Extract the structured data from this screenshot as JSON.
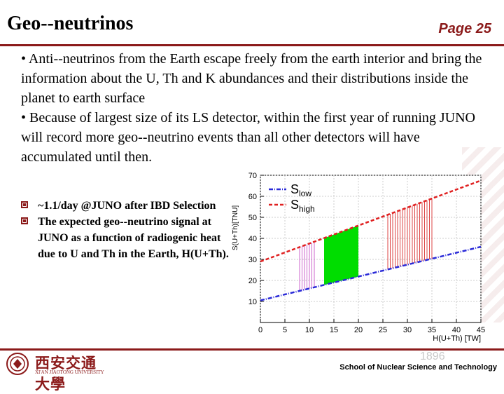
{
  "header": {
    "title": "Geo--neutrinos",
    "page": "Page 25"
  },
  "body": {
    "paragraph1": "• Anti--neutrinos from the Earth escape freely from the earth interior and bring the information about the U, Th and K abundances and their distributions inside the planet to earth surface",
    "paragraph2": "• Because of largest size of its LS detector, within the first year of running JUNO will record more geo--neutrino events than all other detectors will have accumulated until then."
  },
  "bullets": [
    "~1.1/day @JUNO after IBD Selection",
    "The expected geo--neutrino signal at JUNO as a function of radiogenic heat due to U and Th in the Earth, H(U+Th)."
  ],
  "chart_data": {
    "type": "line",
    "xlabel": "H(U+Th) [TW]",
    "ylabel": "S(U+Th)[TNU]",
    "xlim": [
      0,
      45
    ],
    "ylim": [
      0,
      70
    ],
    "xticks": [
      0,
      5,
      10,
      15,
      20,
      25,
      30,
      35,
      40,
      45
    ],
    "yticks": [
      10,
      20,
      30,
      40,
      50,
      60,
      70
    ],
    "series": [
      {
        "name": "S_low",
        "color": "#2a2ad8",
        "style": "dash-dot",
        "x": [
          0,
          45
        ],
        "y": [
          10.5,
          36.0
        ]
      },
      {
        "name": "S_high",
        "color": "#e02020",
        "style": "dashed",
        "x": [
          0,
          45
        ],
        "y": [
          29.0,
          67.5
        ]
      }
    ],
    "bands": [
      {
        "color": "#cc66cc",
        "x_range": [
          8,
          11
        ],
        "hatched": true
      },
      {
        "color": "#00dd00",
        "x_range": [
          13,
          20
        ],
        "hatched": false
      },
      {
        "color": "#dd4444",
        "x_range": [
          26,
          35
        ],
        "hatched": true
      }
    ],
    "legend_position": "top-left",
    "colors": {
      "accent": "#8b1a1a"
    }
  },
  "footer": {
    "logo_cn": "西安交通大學",
    "logo_en": "XI'AN JIAOTONG UNIVERSITY",
    "year": "1896",
    "school": "School of Nuclear Science and Technology"
  }
}
